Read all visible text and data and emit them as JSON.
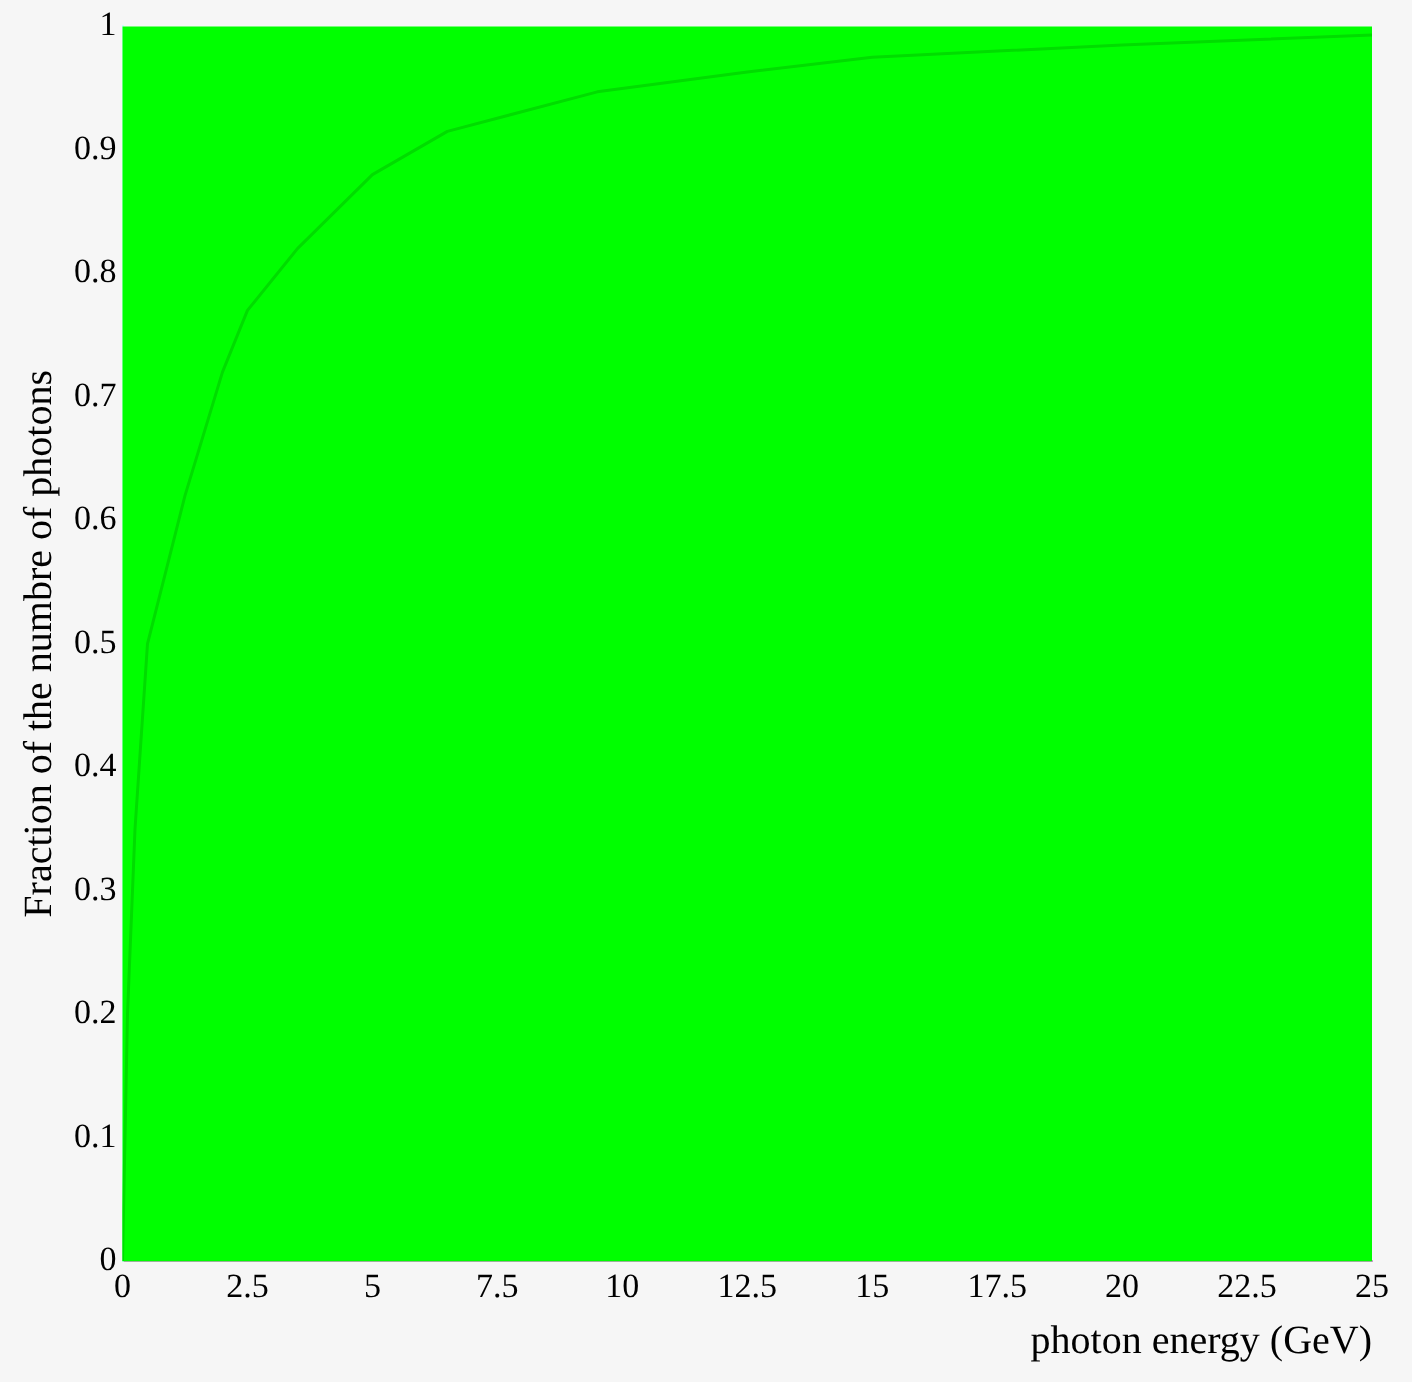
{
  "chart_data": {
    "type": "line",
    "xlabel": "photon energy (GeV)",
    "ylabel": "Fraction of the numbre of photons",
    "x": [
      0,
      0.1,
      0.25,
      0.5,
      1,
      1.25,
      2,
      2.5,
      3.5,
      5,
      6.5,
      9.5,
      12.5,
      15,
      20,
      25
    ],
    "series": [
      {
        "color": "#00dd00",
        "values": [
          0,
          0.2,
          0.35,
          0.5,
          0.58,
          0.62,
          0.72,
          0.77,
          0.82,
          0.88,
          0.915,
          0.947,
          0.963,
          0.975,
          0.985,
          0.993
        ]
      }
    ],
    "xlim": [
      0,
      25
    ],
    "xticks": [
      0,
      2.5,
      5,
      7.5,
      10,
      12.5,
      15,
      17.5,
      20,
      22.5,
      25
    ],
    "ylim": [
      0,
      1
    ],
    "yticks": [
      0,
      0.1,
      0.2,
      0.3,
      0.4,
      0.5,
      0.6,
      0.7,
      0.8,
      0.9,
      1
    ],
    "grid": false,
    "legend": false
  }
}
